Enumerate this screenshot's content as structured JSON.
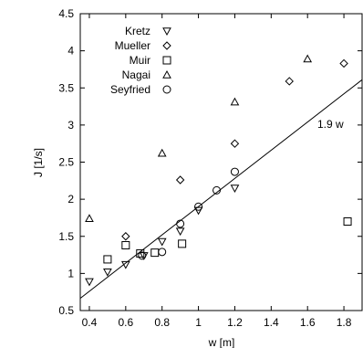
{
  "chart_data": {
    "type": "scatter",
    "title": "",
    "xlabel": "w [m]",
    "ylabel": "J [1/s]",
    "xlim": [
      0.35,
      1.9
    ],
    "ylim": [
      0.5,
      4.5
    ],
    "xticks": [
      0.4,
      0.6,
      0.8,
      1.0,
      1.2,
      1.4,
      1.6,
      1.8
    ],
    "xtick_labels": [
      "0.4",
      "0.6",
      "0.8",
      "1",
      "1.2",
      "1.4",
      "1.6",
      "1.8"
    ],
    "yticks": [
      0.5,
      1.0,
      1.5,
      2.0,
      2.5,
      3.0,
      3.5,
      4.0,
      4.5
    ],
    "ytick_labels": [
      "0.5",
      "1",
      "1.5",
      "2",
      "2.5",
      "3",
      "3.5",
      "4",
      "4.5"
    ],
    "grid": false,
    "legend_position": "top-left",
    "series": [
      {
        "name": "Kretz",
        "marker": "triangle-down",
        "points": [
          [
            0.4,
            0.89
          ],
          [
            0.5,
            1.02
          ],
          [
            0.6,
            1.12
          ],
          [
            0.7,
            1.24
          ],
          [
            0.8,
            1.43
          ],
          [
            0.9,
            1.57
          ],
          [
            1.0,
            1.85
          ],
          [
            1.2,
            2.15
          ]
        ]
      },
      {
        "name": "Mueller",
        "marker": "diamond",
        "points": [
          [
            0.6,
            1.5
          ],
          [
            0.9,
            2.26
          ],
          [
            1.2,
            2.75
          ],
          [
            1.5,
            3.59
          ],
          [
            1.8,
            3.83
          ]
        ]
      },
      {
        "name": "Muir",
        "marker": "square",
        "points": [
          [
            0.5,
            1.19
          ],
          [
            0.6,
            1.38
          ],
          [
            0.68,
            1.27
          ],
          [
            0.76,
            1.28
          ],
          [
            0.91,
            1.4
          ],
          [
            1.82,
            1.7
          ]
        ]
      },
      {
        "name": "Nagai",
        "marker": "triangle-up",
        "points": [
          [
            0.4,
            1.74
          ],
          [
            0.8,
            2.62
          ],
          [
            1.2,
            3.31
          ],
          [
            1.6,
            3.89
          ]
        ]
      },
      {
        "name": "Seyfried",
        "marker": "circle",
        "points": [
          [
            0.69,
            1.24
          ],
          [
            0.8,
            1.29
          ],
          [
            0.9,
            1.67
          ],
          [
            1.0,
            1.9
          ],
          [
            1.1,
            2.12
          ],
          [
            1.2,
            2.37
          ]
        ]
      }
    ],
    "fit_line": {
      "label": "1.9 w",
      "slope": 1.9,
      "x_range": [
        0.35,
        1.9
      ]
    }
  }
}
